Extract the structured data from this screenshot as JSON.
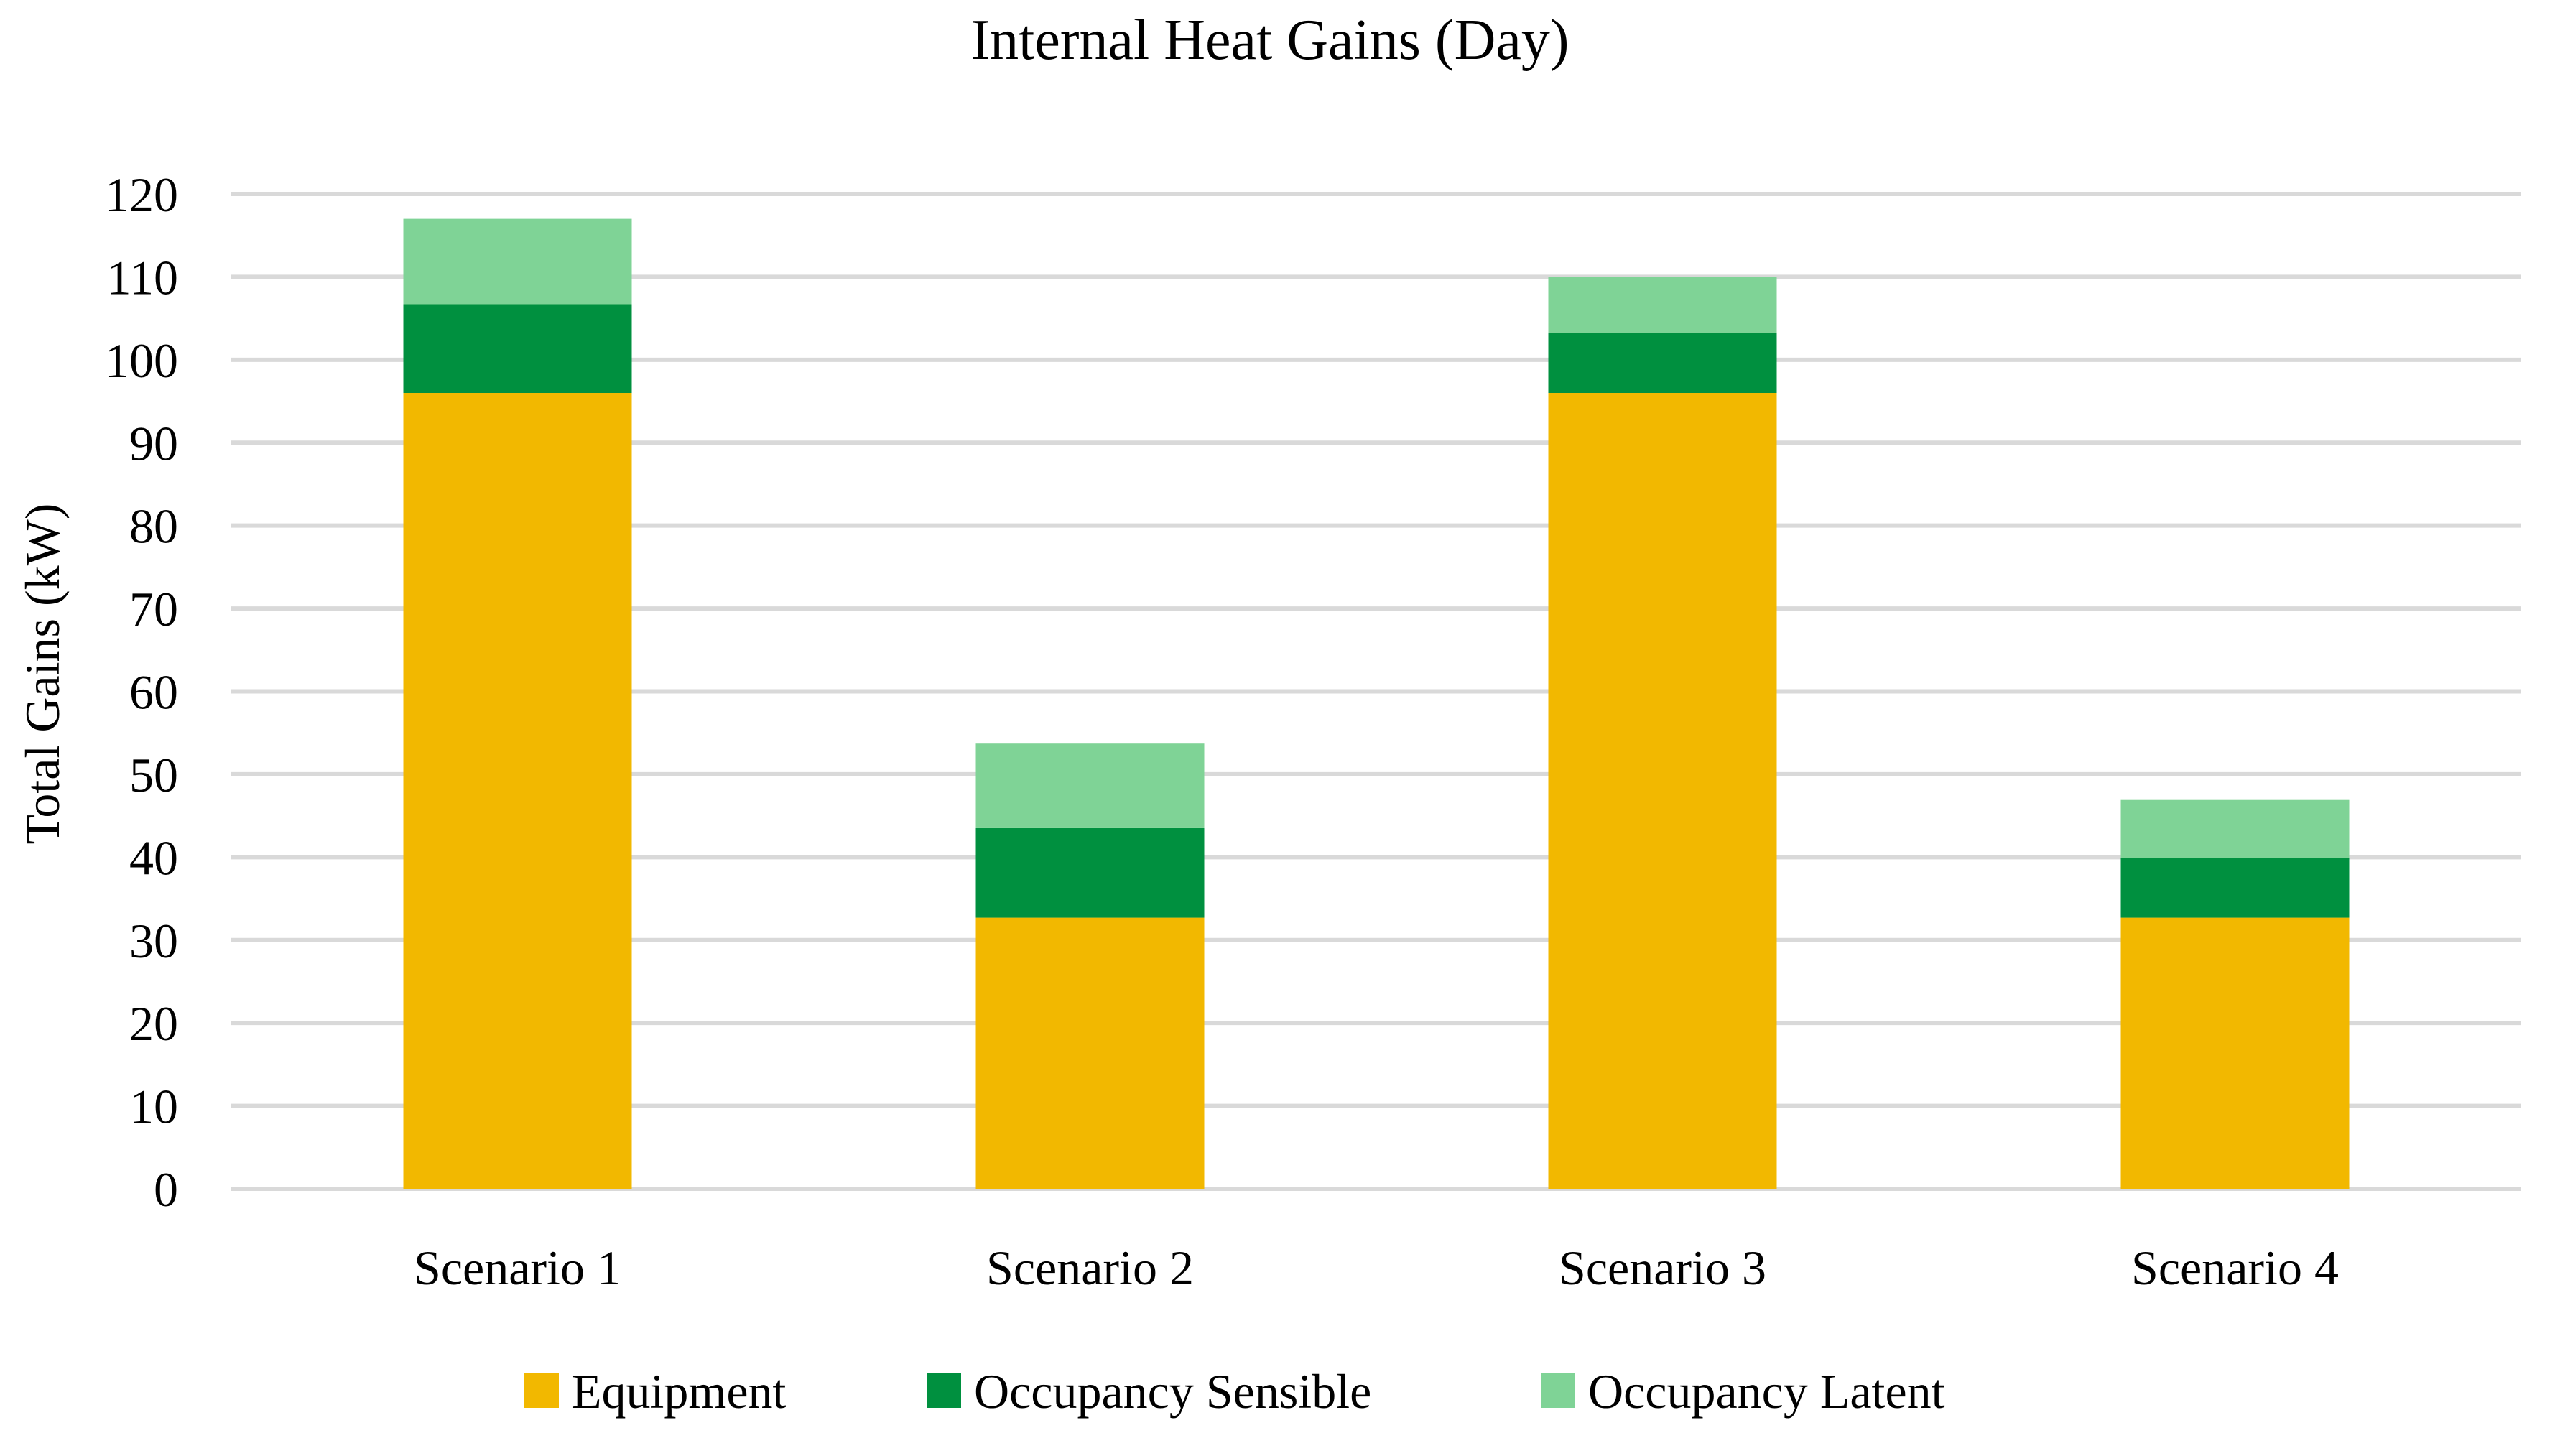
{
  "chart_data": {
    "type": "bar",
    "stacked": true,
    "title": "Internal Heat Gains (Day)",
    "xlabel": "",
    "ylabel": "Total Gains (kW)",
    "ylim": [
      0,
      120
    ],
    "yticks": [
      0,
      10,
      20,
      30,
      40,
      50,
      60,
      70,
      80,
      90,
      100,
      110,
      120
    ],
    "grid": true,
    "legend_position": "bottom",
    "categories": [
      "Scenario 1",
      "Scenario 2",
      "Scenario 3",
      "Scenario 4"
    ],
    "series": [
      {
        "name": "Equipment",
        "color": "#F2B800",
        "values": [
          96,
          32.7,
          96,
          32.7
        ]
      },
      {
        "name": "Occupancy Sensible",
        "color": "#00903F",
        "values": [
          10.7,
          10.8,
          7.2,
          7.2
        ]
      },
      {
        "name": "Occupancy Latent",
        "color": "#7FD396",
        "values": [
          10.3,
          10.2,
          6.8,
          7.0
        ]
      }
    ],
    "gridline_color": "#D9D9D9"
  }
}
